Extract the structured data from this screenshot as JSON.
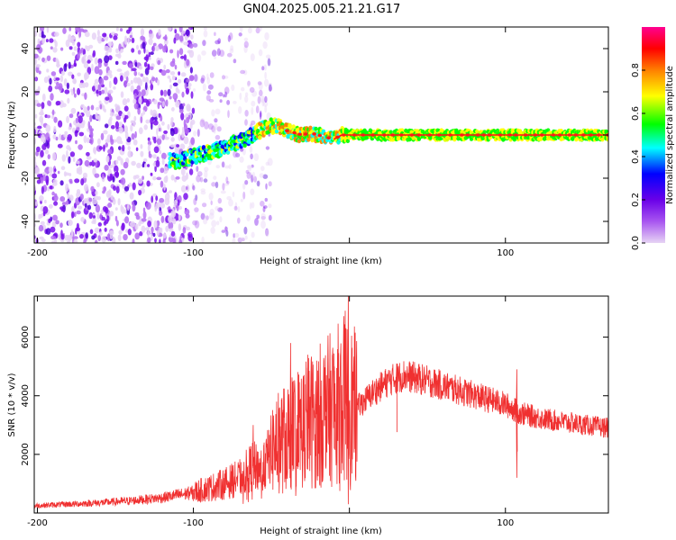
{
  "title": "GN04.2025.005.21.21.G17",
  "chart_data": [
    {
      "type": "heatmap",
      "xlabel": "Height of straight line (km)",
      "ylabel": "Frequency (Hz)",
      "xlim": [
        -202,
        166
      ],
      "ylim": [
        -50,
        50
      ],
      "xticks": [
        -200,
        -100,
        0,
        100
      ],
      "xtick_labels": [
        "-200",
        "-100",
        "",
        "100"
      ],
      "yticks": [
        -40,
        -20,
        0,
        20,
        40
      ],
      "colorbar": {
        "label": "Normalized spectral amplitude",
        "range": [
          0,
          1
        ],
        "ticks": [
          0.0,
          0.2,
          0.4,
          0.6,
          0.8
        ],
        "tick_labels": [
          "0.0",
          "0.2",
          "0.4",
          "0.6",
          "0.8"
        ],
        "colors": [
          "#e7d4f4",
          "#a855f0",
          "#6a00e8",
          "#0000ff",
          "#00ffff",
          "#00ff00",
          "#ffff00",
          "#ff8000",
          "#ff0000",
          "#ff0090"
        ]
      },
      "noise_region_x": [
        -200,
        -100
      ],
      "ridge": {
        "x": [
          -115,
          -110,
          -105,
          -100,
          -95,
          -90,
          -85,
          -80,
          -75,
          -70,
          -65,
          -60,
          -55,
          -50,
          -45,
          -40,
          -35,
          -30,
          -25,
          -20,
          -15,
          -10,
          -5,
          0,
          10,
          50,
          100,
          166
        ],
        "freq": [
          -12,
          -12,
          -11,
          -10,
          -9,
          -8,
          -7,
          -6,
          -4,
          -3,
          -1,
          1,
          3,
          4,
          4,
          2,
          1,
          0,
          1,
          0,
          -1,
          -2,
          0,
          0,
          0,
          0,
          0,
          0
        ]
      }
    },
    {
      "type": "line",
      "xlabel": "Height of straight line (km)",
      "ylabel": "SNR (10 * v/v)",
      "xlim": [
        -202,
        166
      ],
      "ylim": [
        0,
        7400
      ],
      "xticks": [
        -200,
        -100,
        0,
        100
      ],
      "xtick_labels": [
        "-200",
        "-100",
        "",
        "100"
      ],
      "yticks": [
        2000,
        4000,
        6000
      ],
      "color": "#f03030",
      "envelope": {
        "x": [
          -202,
          -180,
          -160,
          -140,
          -120,
          -100,
          -90,
          -80,
          -70,
          -62,
          -55,
          -50,
          -40,
          -30,
          -20,
          -10,
          -3,
          0,
          5,
          15,
          25,
          35,
          50,
          75,
          100,
          110,
          125,
          145,
          166
        ],
        "y": [
          250,
          300,
          350,
          420,
          520,
          700,
          850,
          1000,
          1200,
          1600,
          1500,
          2200,
          2600,
          3000,
          3300,
          3600,
          3900,
          3700,
          3600,
          4100,
          4500,
          4700,
          4500,
          4100,
          3700,
          3400,
          3200,
          3050,
          2900
        ]
      },
      "spikes": [
        {
          "x": -62,
          "y": 3000
        },
        {
          "x": -55,
          "y": 2400
        },
        {
          "x": -45,
          "y": 3600
        },
        {
          "x": -38,
          "y": 5800
        },
        {
          "x": -33,
          "y": 4700
        },
        {
          "x": -27,
          "y": 5400
        },
        {
          "x": -22,
          "y": 4500
        },
        {
          "x": -15,
          "y": 4700
        },
        {
          "x": -10,
          "y": 5000
        },
        {
          "x": -3,
          "y": 6900
        },
        {
          "x": -1,
          "y": 7400
        },
        {
          "x": 3,
          "y": 5000
        },
        {
          "x": 30,
          "y": 5100
        },
        {
          "x": 107,
          "y": 4900
        }
      ],
      "dips": [
        {
          "x": -1,
          "y": 300
        },
        {
          "x": 107,
          "y": 1200
        }
      ]
    }
  ]
}
